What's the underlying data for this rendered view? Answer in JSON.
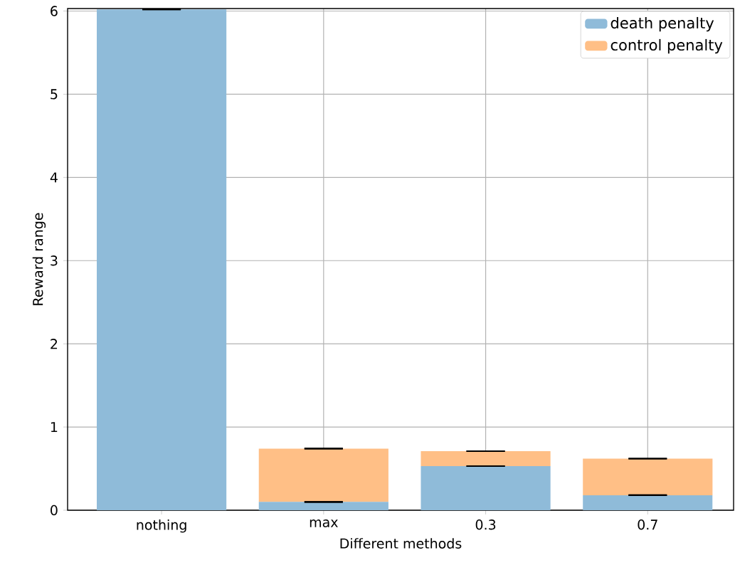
{
  "chart_data": {
    "type": "bar",
    "stacked": true,
    "xlabel": "Different methods",
    "ylabel": "Reward range",
    "categories": [
      "nothing",
      "max",
      "0.3",
      "0.7"
    ],
    "series": [
      {
        "name": "death penalty",
        "color": "#8fbbd9",
        "values": [
          6.02,
          0.1,
          0.53,
          0.18
        ],
        "errors": [
          0,
          0,
          0,
          0
        ]
      },
      {
        "name": "control penalty",
        "color": "#ffbf86",
        "values": [
          0,
          0.64,
          0.18,
          0.44
        ],
        "errors": [
          0,
          0,
          0,
          0
        ]
      }
    ],
    "ylim": [
      0,
      6.03
    ],
    "yticks": [
      0,
      1,
      2,
      3,
      4,
      5,
      6
    ],
    "grid": true,
    "legend": "top right"
  }
}
